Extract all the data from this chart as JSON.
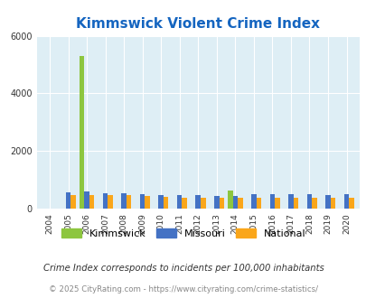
{
  "title": "Kimmswick Violent Crime Index",
  "years": [
    2004,
    2005,
    2006,
    2007,
    2008,
    2009,
    2010,
    2011,
    2012,
    2013,
    2014,
    2015,
    2016,
    2017,
    2018,
    2019,
    2020
  ],
  "kimmswick": [
    0,
    0,
    5300,
    0,
    0,
    0,
    0,
    0,
    0,
    0,
    620,
    0,
    0,
    0,
    0,
    0,
    0
  ],
  "missouri": [
    0,
    560,
    590,
    530,
    530,
    510,
    480,
    480,
    460,
    440,
    430,
    490,
    490,
    510,
    490,
    470,
    490
  ],
  "national": [
    0,
    480,
    480,
    470,
    460,
    430,
    410,
    390,
    370,
    370,
    370,
    380,
    390,
    390,
    370,
    370,
    370
  ],
  "kimmswick_color": "#8dc63f",
  "missouri_color": "#4472c4",
  "national_color": "#faa61a",
  "bg_color": "#deeef5",
  "title_color": "#1565c0",
  "ylim": [
    0,
    6000
  ],
  "yticks": [
    0,
    2000,
    4000,
    6000
  ],
  "footnote": "Crime Index corresponds to incidents per 100,000 inhabitants",
  "copyright": "© 2025 CityRating.com - https://www.cityrating.com/crime-statistics/",
  "bar_width": 0.27
}
